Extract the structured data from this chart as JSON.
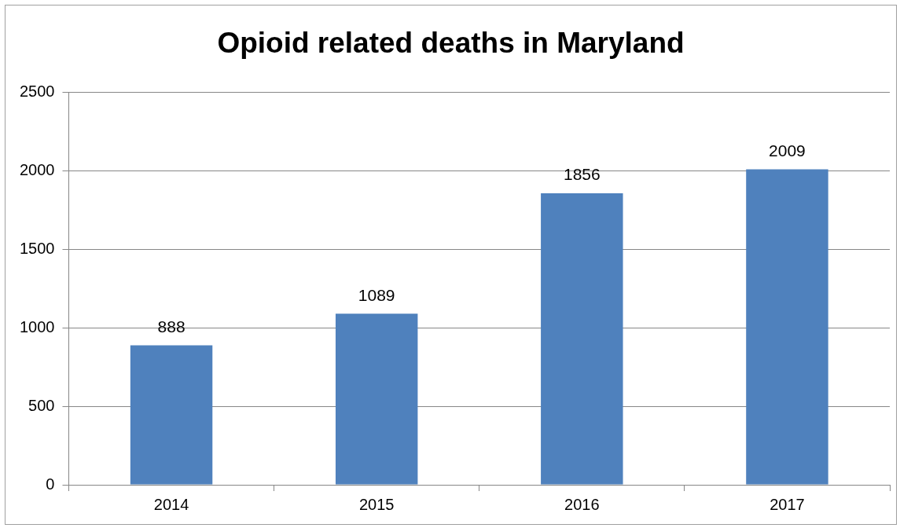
{
  "chart_data": {
    "type": "bar",
    "title": "Opioid related deaths in Maryland",
    "categories": [
      "2014",
      "2015",
      "2016",
      "2017"
    ],
    "values": [
      888,
      1089,
      1856,
      2009
    ],
    "color": "#4f81bd",
    "ylim": [
      0,
      2500
    ],
    "yticks": [
      0,
      500,
      1000,
      1500,
      2000,
      2500
    ],
    "grid": "y",
    "legend": false,
    "data_labels": true
  }
}
